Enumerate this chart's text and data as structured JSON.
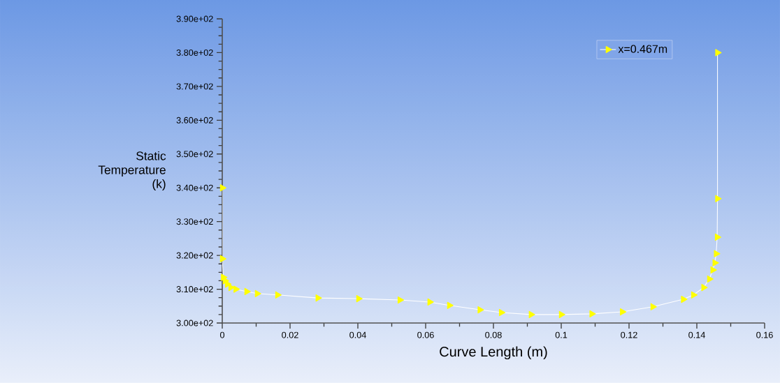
{
  "chart_data": {
    "type": "line",
    "xlabel": "Curve Length (m)",
    "ylabel": "Static Temperature (k)",
    "xlim": [
      0,
      0.16
    ],
    "xticks": [
      0,
      0.02,
      0.04,
      0.06,
      0.08,
      0.1,
      0.12,
      0.14,
      0.16
    ],
    "ylim": [
      300,
      390
    ],
    "yticks": [
      {
        "value": 300,
        "label": "3.00e+02"
      },
      {
        "value": 310,
        "label": "3.10e+02"
      },
      {
        "value": 320,
        "label": "3.20e+02"
      },
      {
        "value": 330,
        "label": "3.30e+02"
      },
      {
        "value": 340,
        "label": "3.40e+02"
      },
      {
        "value": 350,
        "label": "3.50e+02"
      },
      {
        "value": 360,
        "label": "3.60e+02"
      },
      {
        "value": 370,
        "label": "3.70e+02"
      },
      {
        "value": 380,
        "label": "3.80e+02"
      },
      {
        "value": 390,
        "label": "3.90e+02"
      }
    ],
    "legend": "top right",
    "marker": "triangle",
    "grid": false,
    "series": [
      {
        "name": "x=0.467m",
        "color": "#ffff00",
        "x": [
          0,
          0,
          0.0003,
          0.0008,
          0.0015,
          0.0025,
          0.004,
          0.0072,
          0.0103,
          0.0163,
          0.0282,
          0.0402,
          0.0524,
          0.0612,
          0.067,
          0.076,
          0.0823,
          0.0911,
          0.1,
          0.109,
          0.118,
          0.127,
          0.136,
          0.139,
          0.142,
          0.1437,
          0.1447,
          0.1453,
          0.1457,
          0.146,
          0.1461,
          0.1461
        ],
        "values": [
          340,
          319,
          313.5,
          312.5,
          311.5,
          310.5,
          310,
          309.3,
          308.7,
          308.3,
          307.4,
          307.2,
          306.8,
          306.2,
          305.2,
          303.9,
          303.1,
          302.5,
          302.5,
          302.7,
          303.3,
          304.8,
          307,
          308.3,
          310.5,
          313,
          315.7,
          317.8,
          320.5,
          325.4,
          336.8,
          380
        ]
      }
    ]
  }
}
